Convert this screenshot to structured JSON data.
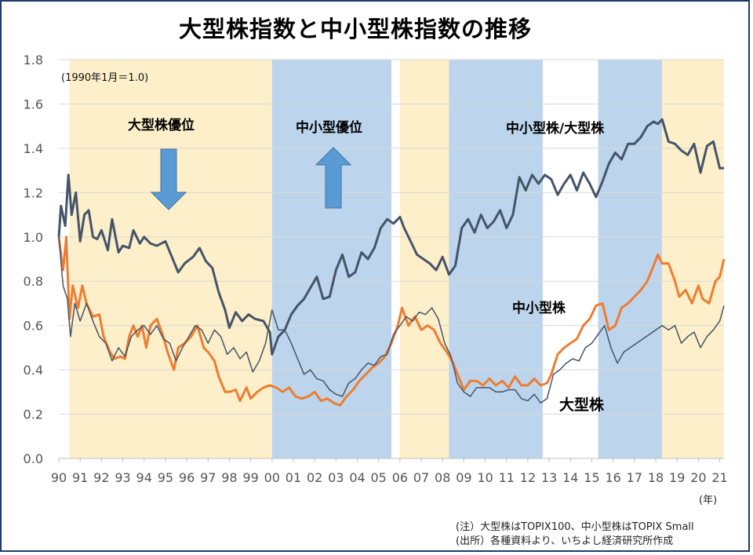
{
  "title": "大型株指数と中小型株指数の推移",
  "base_note": "(1990年1月＝1.0)",
  "annotations": {
    "large_advantage": "大型株優位",
    "small_advantage": "中小型優位",
    "ratio_label": "中小型株/大型株",
    "small_label": "中小型株",
    "large_label": "大型株"
  },
  "unit_label": "(年)",
  "notes": {
    "note1": "(注）大型株はTOPIX100、中小型株はTOPIX Small",
    "note2": "(出所）各種資料より、いちよし経済研究所作成"
  },
  "colors": {
    "large_period": "#fdefc9",
    "small_period": "#bcd5ec",
    "ratio": "#44546a",
    "small": "#ed7d31",
    "large": "#44546a",
    "arrow": "#5b9bd5"
  },
  "chart_data": {
    "type": "line",
    "title": "大型株指数と中小型株指数の推移",
    "xlabel": "(年)",
    "ylabel": "",
    "ylim": [
      0,
      1.8
    ],
    "yticks": [
      "0.0",
      "0.2",
      "0.4",
      "0.6",
      "0.8",
      "1.0",
      "1.2",
      "1.4",
      "1.6",
      "1.8"
    ],
    "xlim": [
      1990.0,
      2021.2
    ],
    "xtick_labels": [
      "90",
      "91",
      "92",
      "93",
      "94",
      "95",
      "96",
      "97",
      "98",
      "99",
      "00",
      "01",
      "02",
      "03",
      "04",
      "05",
      "06",
      "07",
      "08",
      "09",
      "10",
      "11",
      "12",
      "13",
      "14",
      "15",
      "16",
      "17",
      "18",
      "19",
      "20",
      "21"
    ],
    "period_shading": [
      {
        "from": 1990.5,
        "to": 2000.0,
        "regime": "large"
      },
      {
        "from": 2000.0,
        "to": 2005.6,
        "regime": "small"
      },
      {
        "from": 2006.0,
        "to": 2008.3,
        "regime": "large"
      },
      {
        "from": 2008.3,
        "to": 2012.7,
        "regime": "small"
      },
      {
        "from": 2015.3,
        "to": 2018.3,
        "regime": "small"
      },
      {
        "from": 2018.3,
        "to": 2021.2,
        "regime": "large"
      }
    ],
    "series": [
      {
        "name": "中小型株/大型株",
        "x": [
          1990.0,
          1990.1,
          1990.3,
          1990.45,
          1990.6,
          1990.8,
          1991.0,
          1991.2,
          1991.4,
          1991.6,
          1991.8,
          1992.0,
          1992.3,
          1992.5,
          1992.8,
          1993.0,
          1993.3,
          1993.5,
          1993.8,
          1994.0,
          1994.3,
          1994.6,
          1995.0,
          1995.3,
          1995.6,
          1995.9,
          1996.3,
          1996.6,
          1996.9,
          1997.2,
          1997.5,
          1997.8,
          1998.0,
          1998.3,
          1998.6,
          1998.9,
          1999.2,
          1999.6,
          1999.9,
          2000.0,
          2000.3,
          2000.6,
          2000.9,
          2001.2,
          2001.5,
          2001.8,
          2002.1,
          2002.4,
          2002.7,
          2003.0,
          2003.3,
          2003.6,
          2003.9,
          2004.2,
          2004.5,
          2004.8,
          2005.1,
          2005.4,
          2005.7,
          2006.0,
          2006.2,
          2006.5,
          2006.8,
          2007.1,
          2007.4,
          2007.7,
          2008.0,
          2008.3,
          2008.6,
          2008.9,
          2009.2,
          2009.5,
          2009.8,
          2010.1,
          2010.4,
          2010.7,
          2011.0,
          2011.3,
          2011.6,
          2011.9,
          2012.2,
          2012.5,
          2012.8,
          2013.1,
          2013.4,
          2013.7,
          2014.0,
          2014.3,
          2014.6,
          2014.9,
          2015.2,
          2015.5,
          2015.8,
          2016.1,
          2016.4,
          2016.7,
          2017.0,
          2017.3,
          2017.6,
          2017.9,
          2018.1,
          2018.3,
          2018.6,
          2018.9,
          2019.2,
          2019.5,
          2019.8,
          2020.1,
          2020.4,
          2020.7,
          2021.0,
          2021.2
        ],
        "values": [
          1.0,
          1.14,
          1.05,
          1.28,
          1.1,
          1.2,
          0.98,
          1.1,
          1.12,
          1.0,
          0.99,
          1.03,
          0.94,
          1.08,
          0.93,
          0.96,
          0.95,
          1.03,
          0.97,
          1.0,
          0.97,
          0.96,
          0.98,
          0.91,
          0.84,
          0.88,
          0.91,
          0.95,
          0.89,
          0.86,
          0.75,
          0.67,
          0.59,
          0.66,
          0.62,
          0.65,
          0.63,
          0.62,
          0.57,
          0.47,
          0.55,
          0.58,
          0.65,
          0.69,
          0.72,
          0.77,
          0.82,
          0.72,
          0.73,
          0.85,
          0.92,
          0.82,
          0.84,
          0.93,
          0.9,
          0.95,
          1.04,
          1.08,
          1.06,
          1.09,
          1.04,
          0.98,
          0.92,
          0.9,
          0.88,
          0.85,
          0.91,
          0.83,
          0.87,
          1.04,
          1.08,
          1.02,
          1.1,
          1.04,
          1.07,
          1.12,
          1.04,
          1.1,
          1.27,
          1.21,
          1.28,
          1.24,
          1.28,
          1.26,
          1.19,
          1.24,
          1.28,
          1.21,
          1.29,
          1.24,
          1.18,
          1.25,
          1.33,
          1.38,
          1.35,
          1.42,
          1.42,
          1.45,
          1.5,
          1.52,
          1.51,
          1.53,
          1.43,
          1.42,
          1.39,
          1.37,
          1.42,
          1.29,
          1.41,
          1.43,
          1.31,
          1.31
        ]
      },
      {
        "name": "中小型株",
        "x": [
          1990.0,
          1990.2,
          1990.35,
          1990.5,
          1990.65,
          1990.9,
          1991.1,
          1991.3,
          1991.6,
          1991.9,
          1992.1,
          1992.4,
          1992.6,
          1992.9,
          1993.1,
          1993.3,
          1993.5,
          1993.7,
          1993.9,
          1994.1,
          1994.3,
          1994.6,
          1994.9,
          1995.1,
          1995.4,
          1995.6,
          1995.9,
          1996.2,
          1996.5,
          1996.8,
          1997.0,
          1997.3,
          1997.5,
          1997.8,
          1998.0,
          1998.3,
          1998.5,
          1998.8,
          1999.0,
          1999.3,
          1999.6,
          1999.9,
          2000.2,
          2000.5,
          2000.8,
          2001.1,
          2001.4,
          2001.7,
          2002.0,
          2002.3,
          2002.6,
          2002.9,
          2003.2,
          2003.5,
          2003.8,
          2004.1,
          2004.4,
          2004.7,
          2005.0,
          2005.3,
          2005.6,
          2005.9,
          2006.1,
          2006.4,
          2006.7,
          2007.0,
          2007.3,
          2007.6,
          2007.9,
          2008.2,
          2008.5,
          2008.7,
          2009.0,
          2009.3,
          2009.6,
          2009.9,
          2010.2,
          2010.5,
          2010.8,
          2011.1,
          2011.4,
          2011.7,
          2012.0,
          2012.3,
          2012.6,
          2012.9,
          2013.1,
          2013.4,
          2013.7,
          2014.0,
          2014.3,
          2014.6,
          2014.9,
          2015.2,
          2015.5,
          2015.8,
          2016.1,
          2016.4,
          2016.7,
          2017.0,
          2017.3,
          2017.6,
          2017.9,
          2018.1,
          2018.3,
          2018.6,
          2018.9,
          2019.1,
          2019.4,
          2019.7,
          2020.0,
          2020.2,
          2020.5,
          2020.8,
          2021.0,
          2021.2
        ],
        "values": [
          1.0,
          0.85,
          1.0,
          0.63,
          0.78,
          0.68,
          0.78,
          0.7,
          0.64,
          0.65,
          0.55,
          0.48,
          0.45,
          0.46,
          0.45,
          0.55,
          0.6,
          0.55,
          0.6,
          0.5,
          0.6,
          0.63,
          0.55,
          0.48,
          0.4,
          0.5,
          0.52,
          0.55,
          0.6,
          0.5,
          0.48,
          0.44,
          0.37,
          0.3,
          0.3,
          0.31,
          0.26,
          0.32,
          0.27,
          0.3,
          0.32,
          0.33,
          0.32,
          0.3,
          0.32,
          0.28,
          0.27,
          0.28,
          0.3,
          0.26,
          0.27,
          0.25,
          0.24,
          0.28,
          0.31,
          0.35,
          0.38,
          0.41,
          0.43,
          0.46,
          0.52,
          0.6,
          0.68,
          0.6,
          0.64,
          0.58,
          0.6,
          0.58,
          0.52,
          0.48,
          0.43,
          0.38,
          0.31,
          0.35,
          0.35,
          0.33,
          0.36,
          0.33,
          0.35,
          0.32,
          0.37,
          0.33,
          0.33,
          0.36,
          0.33,
          0.34,
          0.38,
          0.47,
          0.5,
          0.52,
          0.54,
          0.6,
          0.63,
          0.69,
          0.7,
          0.58,
          0.6,
          0.68,
          0.7,
          0.73,
          0.76,
          0.8,
          0.87,
          0.92,
          0.88,
          0.88,
          0.8,
          0.73,
          0.76,
          0.7,
          0.78,
          0.72,
          0.7,
          0.8,
          0.82,
          0.9
        ]
      },
      {
        "name": "大型株",
        "x": [
          1990.0,
          1990.2,
          1990.4,
          1990.55,
          1990.75,
          1991.0,
          1991.3,
          1991.6,
          1991.9,
          1992.2,
          1992.5,
          1992.8,
          1993.1,
          1993.4,
          1993.7,
          1994.0,
          1994.3,
          1994.6,
          1994.9,
          1995.2,
          1995.5,
          1995.8,
          1996.1,
          1996.4,
          1996.7,
          1997.0,
          1997.3,
          1997.6,
          1997.9,
          1998.2,
          1998.5,
          1998.8,
          1999.1,
          1999.4,
          1999.7,
          2000.0,
          2000.3,
          2000.6,
          2000.9,
          2001.2,
          2001.5,
          2001.8,
          2002.1,
          2002.4,
          2002.7,
          2003.0,
          2003.3,
          2003.6,
          2003.9,
          2004.2,
          2004.5,
          2004.8,
          2005.1,
          2005.4,
          2005.7,
          2006.0,
          2006.3,
          2006.6,
          2006.9,
          2007.2,
          2007.5,
          2007.8,
          2008.1,
          2008.4,
          2008.7,
          2009.0,
          2009.3,
          2009.6,
          2009.9,
          2010.2,
          2010.5,
          2010.8,
          2011.1,
          2011.4,
          2011.7,
          2012.0,
          2012.3,
          2012.6,
          2012.9,
          2013.2,
          2013.5,
          2013.8,
          2014.1,
          2014.4,
          2014.7,
          2015.0,
          2015.3,
          2015.6,
          2015.9,
          2016.2,
          2016.5,
          2016.8,
          2017.1,
          2017.4,
          2017.7,
          2018.0,
          2018.3,
          2018.6,
          2018.9,
          2019.2,
          2019.5,
          2019.8,
          2020.1,
          2020.4,
          2020.7,
          2021.0,
          2021.2
        ],
        "values": [
          1.0,
          0.78,
          0.72,
          0.55,
          0.7,
          0.62,
          0.7,
          0.62,
          0.55,
          0.52,
          0.44,
          0.5,
          0.46,
          0.55,
          0.58,
          0.6,
          0.56,
          0.6,
          0.54,
          0.52,
          0.44,
          0.5,
          0.55,
          0.6,
          0.58,
          0.52,
          0.58,
          0.55,
          0.47,
          0.5,
          0.45,
          0.48,
          0.39,
          0.44,
          0.52,
          0.67,
          0.58,
          0.58,
          0.52,
          0.45,
          0.38,
          0.4,
          0.36,
          0.35,
          0.31,
          0.29,
          0.28,
          0.34,
          0.36,
          0.4,
          0.43,
          0.42,
          0.46,
          0.47,
          0.56,
          0.6,
          0.64,
          0.62,
          0.66,
          0.65,
          0.68,
          0.63,
          0.52,
          0.46,
          0.34,
          0.3,
          0.28,
          0.32,
          0.32,
          0.32,
          0.3,
          0.3,
          0.31,
          0.31,
          0.27,
          0.26,
          0.29,
          0.25,
          0.27,
          0.38,
          0.4,
          0.43,
          0.45,
          0.44,
          0.5,
          0.52,
          0.56,
          0.6,
          0.5,
          0.43,
          0.48,
          0.5,
          0.52,
          0.54,
          0.56,
          0.58,
          0.6,
          0.58,
          0.6,
          0.52,
          0.55,
          0.57,
          0.5,
          0.55,
          0.58,
          0.62,
          0.69
        ]
      }
    ]
  }
}
